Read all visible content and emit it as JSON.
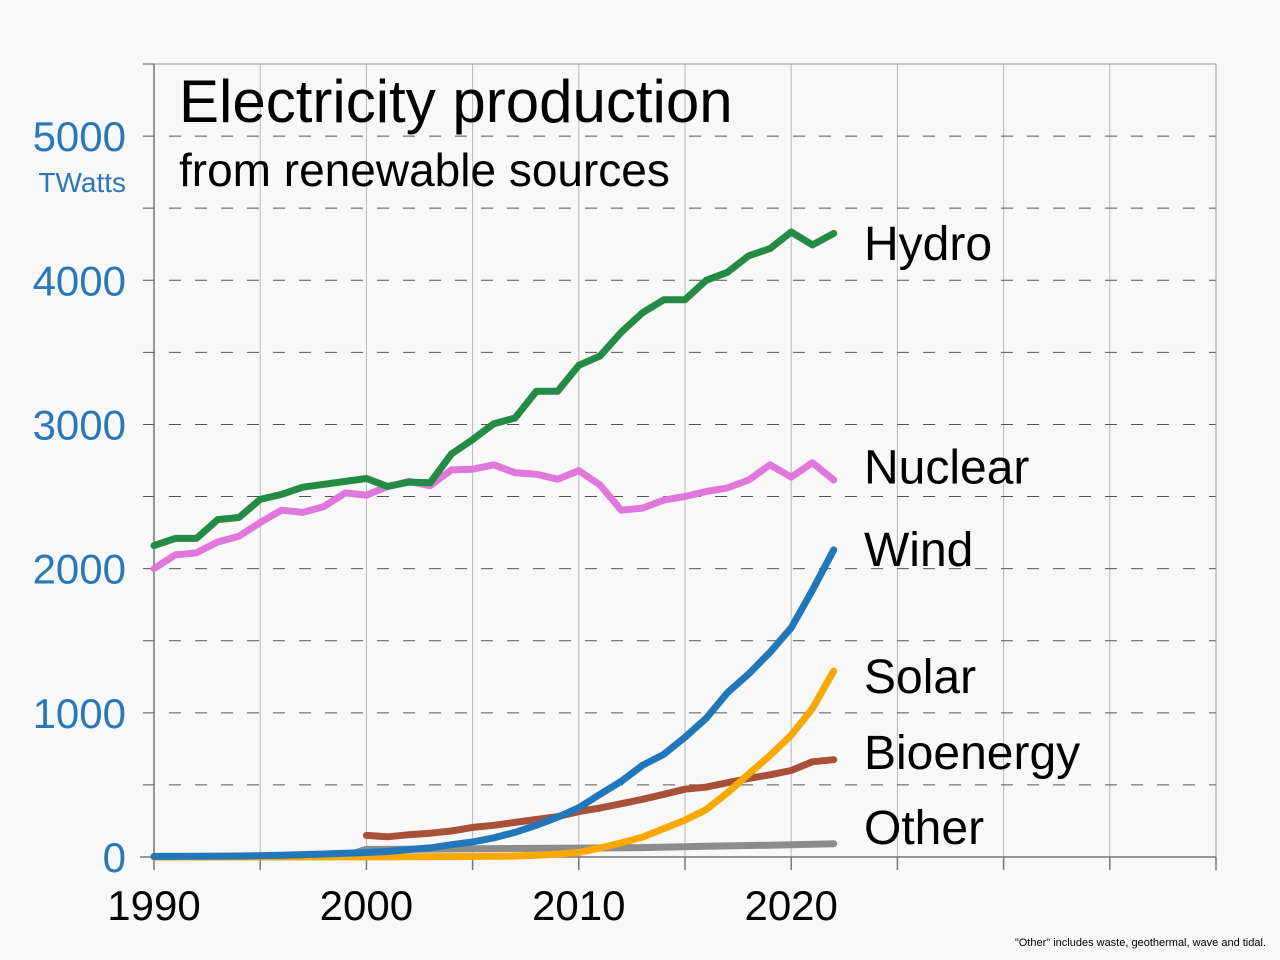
{
  "chart_data": {
    "type": "line",
    "title": "Electricity production",
    "subtitle": "from renewable sources",
    "ylabel": "TWatts",
    "xlabel": "",
    "xlim": [
      1990,
      2040
    ],
    "ylim": [
      0,
      5500
    ],
    "x_ticks": [
      1990,
      2000,
      2010,
      2020
    ],
    "y_ticks": [
      0,
      1000,
      2000,
      3000,
      4000,
      5000
    ],
    "footnote": "\"Other\" includes waste, geothermal, wave and tidal.",
    "grid": true,
    "legend": "inline-right-of-lines",
    "series": [
      {
        "name": "Hydro",
        "color": "#238b45",
        "points": [
          [
            1990,
            2160
          ],
          [
            1991,
            2210
          ],
          [
            1992,
            2210
          ],
          [
            1993,
            2340
          ],
          [
            1994,
            2355
          ],
          [
            1995,
            2480
          ],
          [
            1996,
            2515
          ],
          [
            1997,
            2565
          ],
          [
            1998,
            2585
          ],
          [
            1999,
            2605
          ],
          [
            2000,
            2625
          ],
          [
            2001,
            2570
          ],
          [
            2002,
            2600
          ],
          [
            2003,
            2595
          ],
          [
            2004,
            2795
          ],
          [
            2005,
            2895
          ],
          [
            2006,
            3005
          ],
          [
            2007,
            3045
          ],
          [
            2008,
            3230
          ],
          [
            2009,
            3230
          ],
          [
            2010,
            3410
          ],
          [
            2011,
            3475
          ],
          [
            2012,
            3640
          ],
          [
            2013,
            3775
          ],
          [
            2014,
            3865
          ],
          [
            2015,
            3865
          ],
          [
            2016,
            4000
          ],
          [
            2017,
            4055
          ],
          [
            2018,
            4170
          ],
          [
            2019,
            4220
          ],
          [
            2020,
            4335
          ],
          [
            2021,
            4245
          ],
          [
            2022,
            4325
          ]
        ]
      },
      {
        "name": "Nuclear",
        "color": "#e078dc",
        "points": [
          [
            1990,
            2000
          ],
          [
            1991,
            2095
          ],
          [
            1992,
            2110
          ],
          [
            1993,
            2185
          ],
          [
            1994,
            2225
          ],
          [
            1995,
            2320
          ],
          [
            1996,
            2405
          ],
          [
            1997,
            2390
          ],
          [
            1998,
            2430
          ],
          [
            1999,
            2525
          ],
          [
            2000,
            2510
          ],
          [
            2001,
            2570
          ],
          [
            2002,
            2605
          ],
          [
            2003,
            2575
          ],
          [
            2004,
            2685
          ],
          [
            2005,
            2690
          ],
          [
            2006,
            2720
          ],
          [
            2007,
            2665
          ],
          [
            2008,
            2655
          ],
          [
            2009,
            2620
          ],
          [
            2010,
            2680
          ],
          [
            2011,
            2580
          ],
          [
            2012,
            2405
          ],
          [
            2013,
            2420
          ],
          [
            2014,
            2475
          ],
          [
            2015,
            2500
          ],
          [
            2016,
            2535
          ],
          [
            2017,
            2560
          ],
          [
            2018,
            2615
          ],
          [
            2019,
            2720
          ],
          [
            2020,
            2635
          ],
          [
            2021,
            2735
          ],
          [
            2022,
            2615
          ]
        ]
      },
      {
        "name": "Wind",
        "color": "#2277bb",
        "points": [
          [
            1990,
            4
          ],
          [
            1992,
            5
          ],
          [
            1994,
            7
          ],
          [
            1996,
            12
          ],
          [
            1998,
            21
          ],
          [
            2000,
            31
          ],
          [
            2001,
            38
          ],
          [
            2002,
            52
          ],
          [
            2003,
            63
          ],
          [
            2004,
            85
          ],
          [
            2005,
            104
          ],
          [
            2006,
            133
          ],
          [
            2007,
            171
          ],
          [
            2008,
            220
          ],
          [
            2009,
            276
          ],
          [
            2010,
            342
          ],
          [
            2011,
            435
          ],
          [
            2012,
            525
          ],
          [
            2013,
            636
          ],
          [
            2014,
            712
          ],
          [
            2015,
            831
          ],
          [
            2016,
            962
          ],
          [
            2017,
            1140
          ],
          [
            2018,
            1270
          ],
          [
            2019,
            1420
          ],
          [
            2020,
            1590
          ],
          [
            2021,
            1850
          ],
          [
            2022,
            2130
          ]
        ]
      },
      {
        "name": "Solar",
        "color": "#f9a800",
        "points": [
          [
            1990,
            0
          ],
          [
            1995,
            0
          ],
          [
            2000,
            1
          ],
          [
            2002,
            2
          ],
          [
            2004,
            3
          ],
          [
            2006,
            5
          ],
          [
            2007,
            7
          ],
          [
            2008,
            12
          ],
          [
            2009,
            20
          ],
          [
            2010,
            32
          ],
          [
            2011,
            63
          ],
          [
            2012,
            98
          ],
          [
            2013,
            138
          ],
          [
            2014,
            197
          ],
          [
            2015,
            256
          ],
          [
            2016,
            329
          ],
          [
            2017,
            445
          ],
          [
            2018,
            576
          ],
          [
            2019,
            704
          ],
          [
            2020,
            845
          ],
          [
            2021,
            1030
          ],
          [
            2022,
            1290
          ]
        ]
      },
      {
        "name": "Bioenergy",
        "color": "#a85138",
        "points": [
          [
            2000,
            150
          ],
          [
            2001,
            140
          ],
          [
            2002,
            155
          ],
          [
            2003,
            165
          ],
          [
            2004,
            180
          ],
          [
            2005,
            205
          ],
          [
            2006,
            220
          ],
          [
            2007,
            240
          ],
          [
            2008,
            260
          ],
          [
            2009,
            280
          ],
          [
            2010,
            315
          ],
          [
            2011,
            340
          ],
          [
            2012,
            370
          ],
          [
            2013,
            400
          ],
          [
            2014,
            435
          ],
          [
            2015,
            470
          ],
          [
            2016,
            485
          ],
          [
            2017,
            515
          ],
          [
            2018,
            545
          ],
          [
            2019,
            570
          ],
          [
            2020,
            600
          ],
          [
            2021,
            660
          ],
          [
            2022,
            675
          ]
        ]
      },
      {
        "name": "Other",
        "color": "#8c8c8c",
        "points": [
          [
            1990,
            0
          ],
          [
            1999,
            8
          ],
          [
            2000,
            53
          ],
          [
            2003,
            55
          ],
          [
            2006,
            58
          ],
          [
            2010,
            62
          ],
          [
            2013,
            65
          ],
          [
            2016,
            75
          ],
          [
            2019,
            82
          ],
          [
            2022,
            92
          ]
        ]
      }
    ]
  }
}
